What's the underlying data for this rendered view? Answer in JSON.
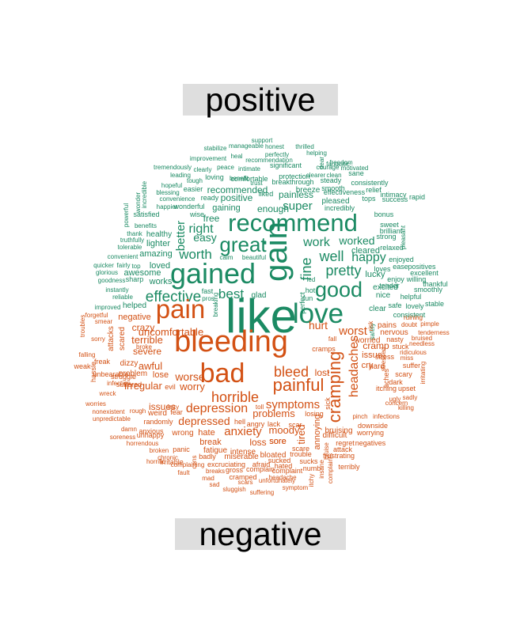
{
  "labels": {
    "positive": "positive",
    "negative": "negative"
  },
  "colors": {
    "positive": "#1b8a63",
    "negative": "#d35114",
    "label_bg": "#dedede"
  },
  "positive_words": [
    "like",
    "gain",
    "recommend",
    "gained",
    "good",
    "love",
    "great",
    "well",
    "work",
    "pretty",
    "fine",
    "happy",
    "effective",
    "best",
    "right",
    "worth",
    "super",
    "painless",
    "worked",
    "easy",
    "better",
    "free",
    "recommended",
    "enough",
    "gaining",
    "positive",
    "comfortable",
    "protection",
    "breakthrough",
    "breeze",
    "smooth",
    "steady",
    "effectiveness",
    "pleased",
    "incredibly",
    "cleared",
    "lucky",
    "nice",
    "clear",
    "safe",
    "consistent",
    "excited",
    "helpful",
    "tender",
    "enjoy",
    "loves",
    "enjoyed",
    "ease",
    "positives",
    "excellent",
    "smoothly",
    "willing",
    "thankful",
    "stable",
    "lovely",
    "relaxed",
    "strong",
    "brilliant",
    "sweet",
    "bonus",
    "success",
    "intimacy",
    "rapid",
    "pleasant",
    "tops",
    "relief",
    "consistently",
    "sane",
    "clean",
    "clearer",
    "fantastic",
    "motivated",
    "freedom",
    "courage",
    "helping",
    "perfectly",
    "honest",
    "thrilled",
    "support",
    "manageable",
    "stabilize",
    "heal",
    "recommendation",
    "intimate",
    "significant",
    "peace",
    "benefit",
    "trust",
    "improvement",
    "tremendously",
    "clearly",
    "leading",
    "tough",
    "hopeful",
    "loving",
    "easier",
    "ready",
    "liked",
    "wonderful",
    "happier",
    "convenience",
    "blessing",
    "incredible",
    "wonder",
    "powerful",
    "satisfied",
    "benefits",
    "thank",
    "truthfully",
    "healthy",
    "lighter",
    "amazing",
    "convenient",
    "quicker",
    "fairly",
    "top",
    "glorious",
    "goodness",
    "awesome",
    "loved",
    "works",
    "sharp",
    "instantly",
    "reliable",
    "tolerable",
    "helped",
    "improved",
    "wise",
    "fast",
    "pros",
    "calm",
    "beautiful",
    "glad",
    "led",
    "hot",
    "fun",
    "perfect",
    "breaking",
    "safely",
    "dear"
  ],
  "negative_words": [
    "bleeding",
    "pain",
    "bad",
    "painful",
    "cramping",
    "bleed",
    "horrible",
    "headaches",
    "worst",
    "hurt",
    "depression",
    "symptoms",
    "anxiety",
    "depressed",
    "worse",
    "lost",
    "problems",
    "moody",
    "tired",
    "uncomfortable",
    "irregular",
    "awful",
    "worry",
    "issues",
    "terrible",
    "severe",
    "crazy",
    "negative",
    "cramp",
    "issue",
    "cry",
    "worried",
    "nervous",
    "pains",
    "hard",
    "stress",
    "loss",
    "sore",
    "annoying",
    "bruising",
    "difficult",
    "wrong",
    "hate",
    "break",
    "fatigue",
    "intense",
    "miserable",
    "bloated",
    "sucked",
    "scare",
    "trouble",
    "sucks",
    "hated",
    "complaint",
    "numb",
    "excruciating",
    "afraid",
    "gross",
    "complain",
    "cramped",
    "scars",
    "unfortunately",
    "symptom",
    "sluggish",
    "suffering",
    "headache",
    "mad",
    "sad",
    "breaks",
    "fault",
    "complaining",
    "horrific",
    "chronic",
    "panic",
    "badly",
    "broken",
    "horrendous",
    "anxious",
    "unhappy",
    "damn",
    "soreness",
    "unpredictable",
    "nonexistent",
    "worries",
    "wreck",
    "struggle",
    "unbearable",
    "problem",
    "suffered",
    "infection",
    "dizzy",
    "scared",
    "attacks",
    "freak",
    "rough",
    "weird",
    "fear",
    "lose",
    "evil",
    "randomly",
    "lazy",
    "hell",
    "angry",
    "lack",
    "scar",
    "toll",
    "losing",
    "sick",
    "insane",
    "itchy",
    "regret",
    "negatives",
    "frustrating",
    "terribly",
    "worrying",
    "downside",
    "infections",
    "pinch",
    "killing",
    "upset",
    "itching",
    "dark",
    "ugly",
    "concern",
    "sadly",
    "irritating",
    "suffer",
    "scary",
    "sore",
    "needless",
    "ridiculous",
    "tenderness",
    "bruised",
    "miss",
    "doubt",
    "pimple",
    "ruining",
    "nasty",
    "stuck",
    "smear",
    "forgetful",
    "troubles",
    "falling",
    "weak",
    "hassle",
    "sorry",
    "fall",
    "stressed",
    "broke",
    "irritable",
    "bruise",
    "attack",
    "complaints",
    "cons",
    "cramps",
    "risk",
    "aches"
  ]
}
